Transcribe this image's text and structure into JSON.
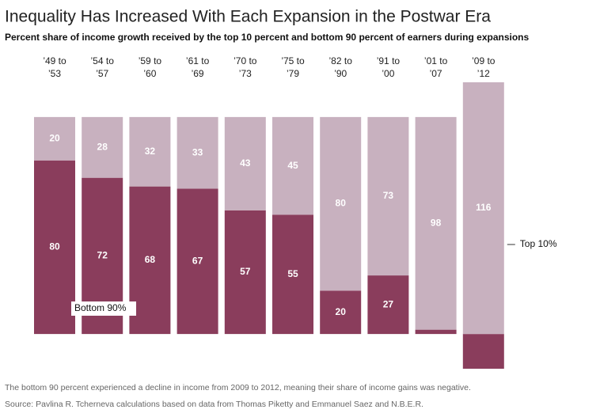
{
  "chart_data": {
    "type": "stacked_bar",
    "title": "Inequality Has Increased With Each Expansion in the Postwar Era",
    "subtitle": "Percent share of income growth received by the top 10 percent and bottom 90 percent of earners during expansions",
    "categories": [
      "’49 to ’53",
      "’54 to ’57",
      "’59 to ’60",
      "’61 to ’69",
      "’70 to ’73",
      "’75 to ’79",
      "’82 to ’90",
      "’91 to ’00",
      "’01 to ’07",
      "’09 to ’12"
    ],
    "series": [
      {
        "name": "Bottom 90%",
        "color": "#8a3d5c",
        "values": [
          80,
          72,
          68,
          67,
          57,
          55,
          20,
          27,
          2,
          -16
        ]
      },
      {
        "name": "Top 10%",
        "color": "#c8b1bf",
        "values": [
          20,
          28,
          32,
          33,
          43,
          45,
          80,
          73,
          98,
          116
        ]
      }
    ],
    "ylim": [
      -16,
      116
    ],
    "footnote": "The bottom 90 percent experienced a decline in income from 2009 to 2012, meaning their share of income gains was negative.",
    "source": "Source: Pavlina R. Tcherneva calculations based on data from Thomas Piketty and Emmanuel Saez and N.B.E.R."
  }
}
